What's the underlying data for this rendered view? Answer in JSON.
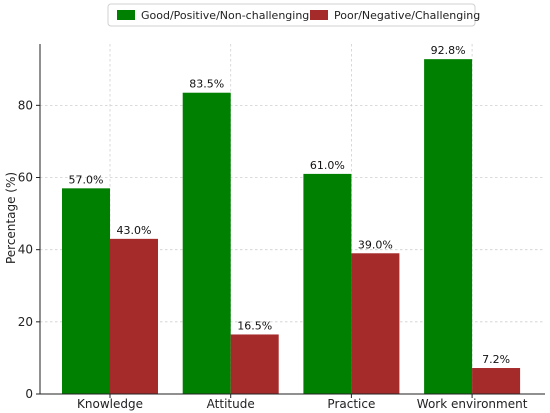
{
  "chart_data": {
    "type": "bar",
    "title": "",
    "xlabel": "",
    "ylabel": "Percentage (%)",
    "ylim": [
      0,
      97
    ],
    "yticks": [
      0,
      20,
      40,
      60,
      80
    ],
    "grid": true,
    "legend_position": "top-center",
    "categories": [
      "Knowledge",
      "Attitude",
      "Practice",
      "Work environment"
    ],
    "series": [
      {
        "name": "Good/Positive/Non-challenging",
        "color": "#008000",
        "values": [
          57.0,
          83.5,
          61.0,
          92.8
        ],
        "labels": [
          "57.0%",
          "83.5%",
          "61.0%",
          "92.8%"
        ]
      },
      {
        "name": "Poor/Negative/Challenging",
        "color": "#A52A2A",
        "values": [
          43.0,
          16.5,
          39.0,
          7.2
        ],
        "labels": [
          "43.0%",
          "16.5%",
          "39.0%",
          "7.2%"
        ]
      }
    ]
  }
}
